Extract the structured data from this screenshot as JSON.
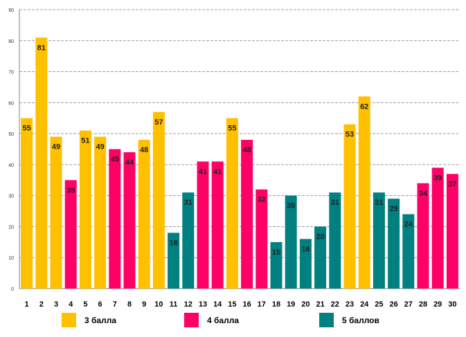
{
  "chart_data": {
    "type": "bar",
    "title": "",
    "xlabel": "",
    "ylabel": "",
    "ylim": [
      0,
      90
    ],
    "yticks": [
      "0",
      "10",
      "20",
      "30",
      "40",
      "50",
      "60",
      "70",
      "80",
      "90"
    ],
    "categories": [
      "1",
      "2",
      "3",
      "4",
      "5",
      "6",
      "7",
      "8",
      "9",
      "10",
      "11",
      "12",
      "13",
      "14",
      "15",
      "16",
      "17",
      "18",
      "19",
      "20",
      "21",
      "22",
      "23",
      "24",
      "25",
      "26",
      "27",
      "28",
      "29",
      "30"
    ],
    "values": [
      55,
      81,
      49,
      35,
      51,
      49,
      45,
      44,
      48,
      57,
      18,
      31,
      41,
      41,
      55,
      48,
      32,
      15,
      30,
      16,
      20,
      31,
      53,
      62,
      31,
      29,
      24,
      34,
      39,
      37
    ],
    "groups": [
      "3 балла",
      "3 балла",
      "3 балла",
      "4 балла",
      "3 балла",
      "3 балла",
      "4 балла",
      "4 балла",
      "3 балла",
      "3 балла",
      "5 баллов",
      "5 баллов",
      "4 балла",
      "4 балла",
      "3 балла",
      "4 балла",
      "4 балла",
      "5 баллов",
      "5 баллов",
      "5 баллов",
      "5 баллов",
      "5 баллов",
      "3 балла",
      "3 балла",
      "5 баллов",
      "5 баллов",
      "5 баллов",
      "4 балла",
      "4 балла",
      "4 балла"
    ],
    "legend": [
      {
        "label": "3 балла",
        "color": "#FFC000"
      },
      {
        "label": "4 балла",
        "color": "#FF0066"
      },
      {
        "label": "5 баллов",
        "color": "#008080"
      }
    ],
    "grid": true,
    "legend_position": "bottom"
  }
}
